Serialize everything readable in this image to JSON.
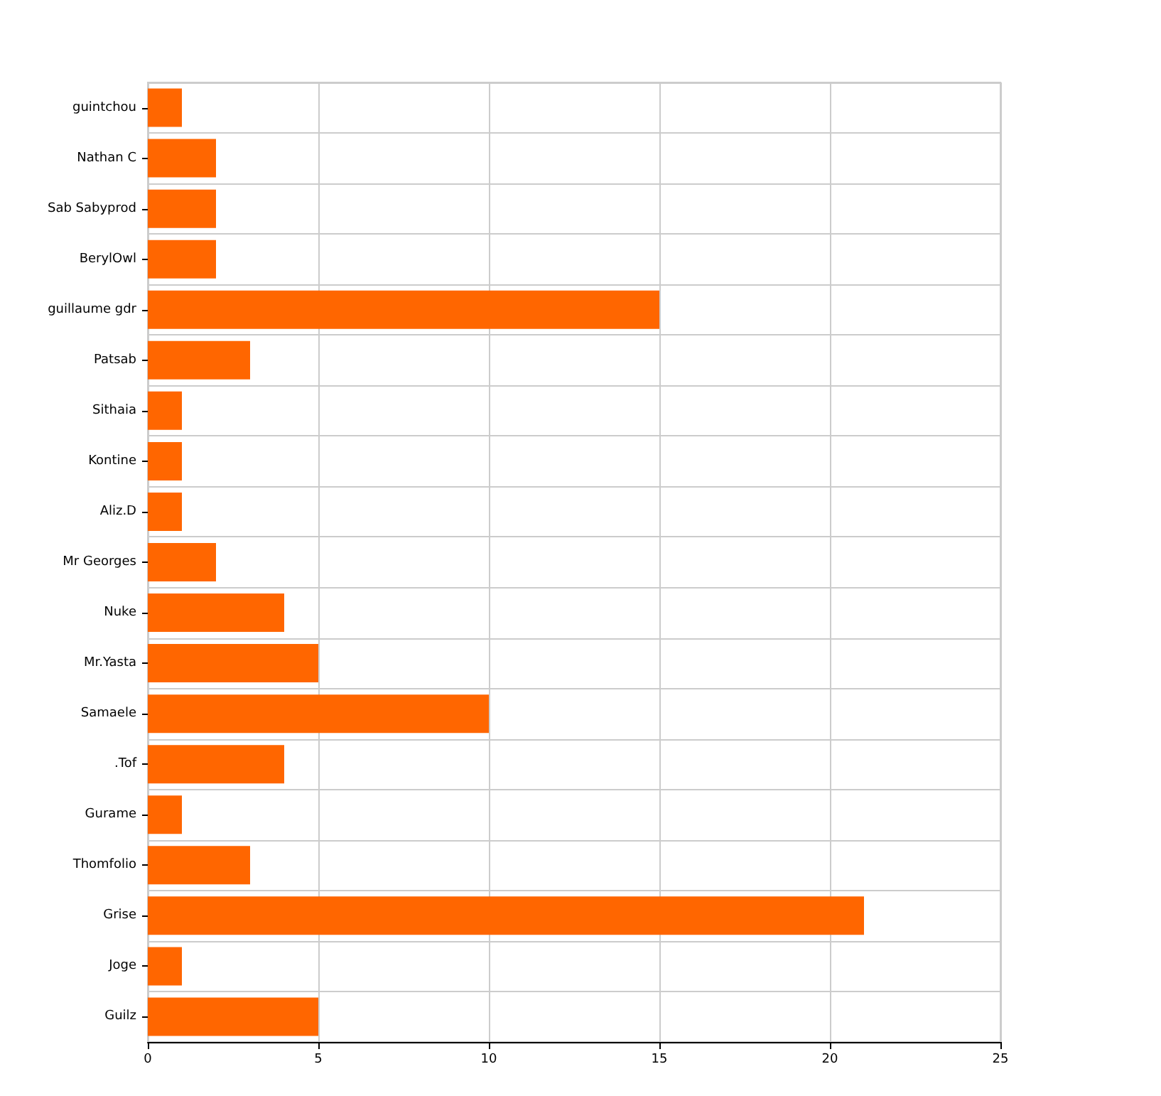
{
  "chart_data": {
    "type": "bar",
    "orientation": "horizontal",
    "categories": [
      "guintchou",
      "Nathan C",
      "Sab Sabyprod",
      "BerylOwl",
      "guillaume gdr",
      "Patsab",
      "Sithaia",
      "Kontine",
      "Aliz.D",
      "Mr Georges",
      "Nuke",
      "Mr.Yasta",
      "Samaele",
      ".Tof",
      "Gurame",
      "Thomfolio",
      "Grise",
      "Joge",
      "Guilz"
    ],
    "values": [
      1,
      2,
      2,
      2,
      15,
      3,
      1,
      1,
      1,
      2,
      4,
      5,
      10,
      4,
      1,
      3,
      21,
      1,
      5
    ],
    "color": "#ff6600",
    "xlim": [
      0,
      25
    ],
    "xticks": [
      0,
      5,
      10,
      15,
      20,
      25
    ],
    "grid": true
  }
}
